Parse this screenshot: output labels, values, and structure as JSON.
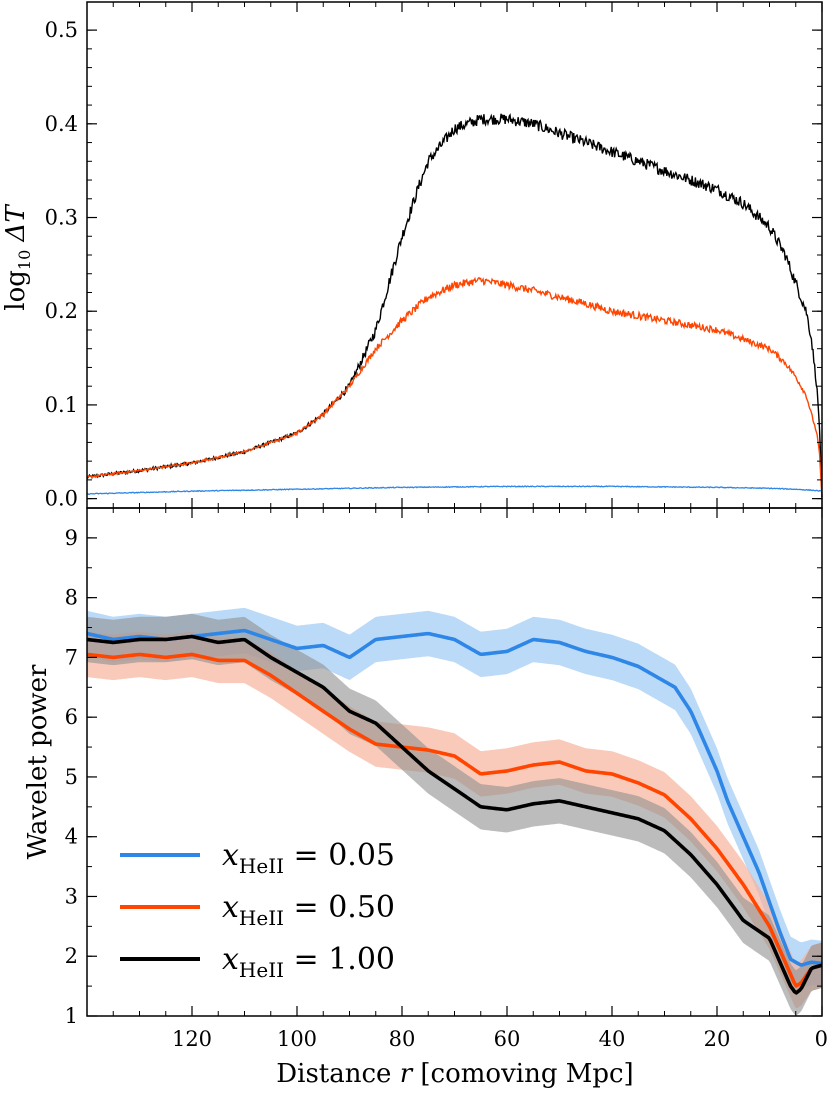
{
  "chart_data": [
    {
      "type": "line",
      "panel": "top",
      "ylabel": "log10 ΔT",
      "ylabel_base": "log",
      "ylabel_sub": "10",
      "ylabel_tail": " ΔT",
      "xlim": [
        140,
        0
      ],
      "ylim": [
        -0.01,
        0.53
      ],
      "yticks": [
        0.0,
        0.1,
        0.2,
        0.3,
        0.4,
        0.5
      ],
      "ytick_labels": [
        "0.0",
        "0.1",
        "0.2",
        "0.3",
        "0.4",
        "0.5"
      ],
      "series": [
        {
          "name": "x_HeII = 1.00",
          "color": "#000000",
          "x": [
            140,
            130,
            120,
            110,
            100,
            95,
            90,
            85,
            82,
            80,
            77,
            75,
            70,
            65,
            60,
            55,
            50,
            45,
            40,
            35,
            30,
            25,
            20,
            15,
            10,
            7,
            5,
            3,
            2,
            1,
            0.5,
            0
          ],
          "y": [
            0.023,
            0.03,
            0.038,
            0.05,
            0.07,
            0.09,
            0.12,
            0.18,
            0.24,
            0.28,
            0.33,
            0.36,
            0.395,
            0.405,
            0.405,
            0.4,
            0.39,
            0.38,
            0.37,
            0.36,
            0.35,
            0.34,
            0.33,
            0.315,
            0.29,
            0.26,
            0.23,
            0.2,
            0.17,
            0.12,
            0.08,
            0.0
          ]
        },
        {
          "name": "x_HeII = 0.50",
          "color": "#ff4500",
          "x": [
            140,
            130,
            120,
            110,
            100,
            95,
            90,
            85,
            80,
            75,
            70,
            65,
            60,
            55,
            50,
            45,
            40,
            35,
            30,
            25,
            20,
            15,
            10,
            7,
            5,
            3,
            2,
            1,
            0.5,
            0
          ],
          "y": [
            0.023,
            0.03,
            0.038,
            0.05,
            0.07,
            0.09,
            0.12,
            0.16,
            0.19,
            0.215,
            0.228,
            0.233,
            0.228,
            0.222,
            0.215,
            0.208,
            0.2,
            0.195,
            0.19,
            0.185,
            0.18,
            0.17,
            0.16,
            0.145,
            0.13,
            0.11,
            0.09,
            0.07,
            0.05,
            0.0
          ]
        },
        {
          "name": "x_HeII = 0.05",
          "color": "#2e86e6",
          "x": [
            140,
            120,
            100,
            80,
            60,
            40,
            20,
            10,
            5,
            2,
            0
          ],
          "y": [
            0.005,
            0.008,
            0.01,
            0.012,
            0.013,
            0.013,
            0.012,
            0.011,
            0.01,
            0.009,
            0.008
          ]
        }
      ]
    },
    {
      "type": "line",
      "panel": "bottom",
      "xlabel": "Distance r  [comoving Mpc]",
      "xlabel_pre": "Distance ",
      "xlabel_var": "r",
      "xlabel_post": "  [comoving Mpc]",
      "ylabel": "Wavelet power",
      "xlim": [
        140,
        0
      ],
      "ylim": [
        1,
        9.5
      ],
      "xticks": [
        120,
        100,
        80,
        60,
        40,
        20,
        0
      ],
      "xtick_labels": [
        "120",
        "100",
        "80",
        "60",
        "40",
        "20",
        "0"
      ],
      "yticks": [
        1,
        2,
        3,
        4,
        5,
        6,
        7,
        8,
        9
      ],
      "ytick_labels": [
        "1",
        "2",
        "3",
        "4",
        "5",
        "6",
        "7",
        "8",
        "9"
      ],
      "band_halfwidth": 0.38,
      "series": [
        {
          "name": "x_HeII = 0.05",
          "legend_label": "0.05",
          "color": "#2e86e6",
          "band_color": "#9ecbf5",
          "x": [
            140,
            135,
            130,
            125,
            120,
            115,
            110,
            105,
            100,
            95,
            90,
            85,
            80,
            75,
            70,
            65,
            60,
            55,
            50,
            45,
            40,
            35,
            30,
            28,
            25,
            22,
            20,
            18,
            15,
            12,
            10,
            8,
            6,
            4,
            2,
            0
          ],
          "y": [
            7.4,
            7.3,
            7.35,
            7.3,
            7.35,
            7.4,
            7.45,
            7.3,
            7.15,
            7.2,
            7.0,
            7.3,
            7.35,
            7.4,
            7.3,
            7.05,
            7.1,
            7.3,
            7.25,
            7.1,
            7.0,
            6.85,
            6.6,
            6.5,
            6.1,
            5.5,
            5.1,
            4.6,
            4.0,
            3.4,
            2.9,
            2.4,
            1.95,
            1.85,
            1.9,
            1.88
          ]
        },
        {
          "name": "x_HeII = 0.50",
          "legend_label": "0.50",
          "color": "#ff4500",
          "band_color": "#f7b49c",
          "x": [
            140,
            135,
            130,
            125,
            120,
            115,
            110,
            105,
            100,
            95,
            90,
            85,
            80,
            75,
            70,
            65,
            60,
            55,
            50,
            45,
            40,
            35,
            30,
            25,
            20,
            15,
            10,
            8,
            6,
            5,
            4,
            2,
            0
          ],
          "y": [
            7.05,
            7.0,
            7.05,
            7.0,
            7.05,
            6.95,
            6.95,
            6.7,
            6.4,
            6.1,
            5.8,
            5.55,
            5.5,
            5.45,
            5.35,
            5.05,
            5.1,
            5.2,
            5.25,
            5.1,
            5.05,
            4.9,
            4.7,
            4.3,
            3.8,
            3.2,
            2.5,
            2.1,
            1.7,
            1.5,
            1.55,
            1.8,
            1.85
          ]
        },
        {
          "name": "x_HeII = 1.00",
          "legend_label": "1.00",
          "color": "#000000",
          "band_color": "#8f8f8f",
          "x": [
            140,
            135,
            130,
            125,
            120,
            115,
            110,
            105,
            100,
            95,
            90,
            85,
            80,
            75,
            70,
            65,
            60,
            55,
            50,
            45,
            40,
            35,
            30,
            25,
            20,
            15,
            10,
            8,
            6,
            5,
            4,
            2,
            0
          ],
          "y": [
            7.3,
            7.25,
            7.3,
            7.3,
            7.35,
            7.25,
            7.3,
            7.0,
            6.75,
            6.5,
            6.1,
            5.9,
            5.5,
            5.1,
            4.8,
            4.5,
            4.45,
            4.55,
            4.6,
            4.5,
            4.4,
            4.3,
            4.1,
            3.7,
            3.2,
            2.6,
            2.3,
            1.9,
            1.5,
            1.38,
            1.45,
            1.8,
            1.85
          ]
        }
      ]
    }
  ],
  "legend": {
    "prefix": "x",
    "subscript": "HeII",
    "equals": " = "
  }
}
